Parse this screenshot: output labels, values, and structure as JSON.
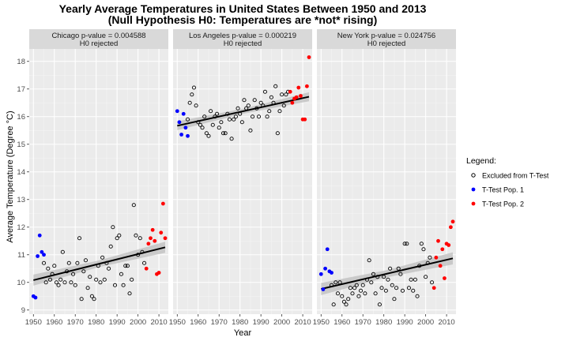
{
  "chart_data": {
    "type": "scatter",
    "title_line1": "Yearly Average Temperatures in United States Between 1950 and 2013",
    "title_line2": "(Null Hypothesis H0: Temperatures are *not* rising)",
    "xlabel": "Year",
    "ylabel": "Average Temperature (Degree °C)",
    "xlim": [
      1948,
      2014.5
    ],
    "ylim": [
      8.85,
      18.45
    ],
    "x_ticks": [
      1950,
      1960,
      1970,
      1980,
      1990,
      2000,
      2010
    ],
    "y_ticks": [
      9,
      10,
      11,
      12,
      13,
      14,
      15,
      16,
      17,
      18
    ],
    "grid": true,
    "legend": {
      "title": "Legend:",
      "position": "right",
      "entries": [
        {
          "label": "Excluded from T-Test",
          "color": "#000000",
          "shape": "open-circle"
        },
        {
          "label": "T-Test Pop. 1",
          "color": "#0000ff",
          "shape": "filled-circle"
        },
        {
          "label": "T-Test Pop. 2",
          "color": "#ff0000",
          "shape": "filled-circle"
        }
      ]
    },
    "colors": {
      "excluded": "#000000",
      "pop1": "#0000ff",
      "pop2": "#ff0000",
      "trend": "#000000",
      "band": "#bdbdbd"
    },
    "panels": [
      {
        "strip_line1": "Chicago p-value = 0.004588",
        "strip_line2": "H0 rejected",
        "trend": {
          "x": [
            1950,
            2013
          ],
          "y": [
            10.08,
            11.27
          ]
        },
        "band_halfwidth": [
          0.2,
          0.12,
          0.2
        ],
        "excluded": {
          "x": [
            1955,
            1956,
            1957,
            1958,
            1959,
            1960,
            1961,
            1962,
            1963,
            1964,
            1965,
            1966,
            1967,
            1968,
            1969,
            1970,
            1971,
            1972,
            1973,
            1974,
            1975,
            1976,
            1977,
            1978,
            1979,
            1980,
            1981,
            1982,
            1983,
            1984,
            1985,
            1986,
            1987,
            1988,
            1989,
            1990,
            1991,
            1992,
            1993,
            1994,
            1995,
            1996,
            1997,
            1998,
            1999,
            2000,
            2001,
            2002,
            2003
          ],
          "y": [
            10.7,
            10.0,
            10.5,
            10.1,
            10.3,
            10.6,
            10.0,
            9.9,
            10.1,
            11.1,
            10.0,
            10.4,
            10.7,
            10.0,
            10.3,
            9.9,
            10.7,
            11.6,
            9.4,
            10.4,
            10.8,
            9.8,
            10.2,
            9.5,
            9.4,
            10.1,
            10.6,
            10.0,
            10.9,
            10.1,
            10.7,
            10.5,
            11.3,
            12.0,
            9.9,
            11.6,
            11.7,
            10.3,
            9.9,
            10.6,
            10.6,
            9.6,
            10.1,
            12.8,
            11.7,
            11.0,
            11.6,
            11.1,
            10.7
          ]
        },
        "pop1": {
          "x": [
            1950,
            1951,
            1952,
            1953,
            1954,
            1955
          ],
          "y": [
            9.5,
            9.45,
            10.95,
            11.7,
            11.1,
            11.0
          ]
        },
        "pop2": {
          "x": [
            2004,
            2005,
            2006,
            2007,
            2008,
            2009,
            2010,
            2011,
            2012,
            2013
          ],
          "y": [
            10.5,
            11.4,
            11.6,
            11.9,
            11.5,
            10.3,
            10.35,
            11.8,
            12.85,
            11.6
          ]
        }
      },
      {
        "strip_line1": "Los Angeles p-value = 0.000219",
        "strip_line2": "H0 rejected",
        "trend": {
          "x": [
            1950,
            2013
          ],
          "y": [
            15.67,
            16.72
          ]
        },
        "band_halfwidth": [
          0.16,
          0.09,
          0.16
        ],
        "excluded": {
          "x": [
            1955,
            1956,
            1957,
            1958,
            1959,
            1960,
            1961,
            1962,
            1963,
            1964,
            1965,
            1966,
            1967,
            1968,
            1969,
            1970,
            1971,
            1972,
            1973,
            1974,
            1975,
            1976,
            1977,
            1978,
            1979,
            1980,
            1981,
            1982,
            1983,
            1984,
            1985,
            1986,
            1987,
            1988,
            1989,
            1990,
            1991,
            1992,
            1993,
            1994,
            1995,
            1996,
            1997,
            1998,
            1999,
            2000,
            2001,
            2002,
            2003
          ],
          "y": [
            15.9,
            16.5,
            16.8,
            17.05,
            16.4,
            15.8,
            15.7,
            15.6,
            16.0,
            15.4,
            15.3,
            16.2,
            15.7,
            16.0,
            16.1,
            15.6,
            15.8,
            15.4,
            15.4,
            16.1,
            15.9,
            15.2,
            15.9,
            16.0,
            16.3,
            16.1,
            15.8,
            16.6,
            16.3,
            16.4,
            15.5,
            16.0,
            16.6,
            16.3,
            16.0,
            16.5,
            16.4,
            16.9,
            16.0,
            16.2,
            16.7,
            16.5,
            17.1,
            15.4,
            16.2,
            16.8,
            16.4,
            16.8,
            16.9
          ]
        },
        "pop1": {
          "x": [
            1950,
            1951,
            1952,
            1953,
            1954,
            1955
          ],
          "y": [
            16.2,
            15.8,
            15.35,
            16.1,
            15.6,
            15.3
          ]
        },
        "pop2": {
          "x": [
            2004,
            2005,
            2006,
            2007,
            2008,
            2009,
            2010,
            2011,
            2012,
            2013
          ],
          "y": [
            16.9,
            16.5,
            16.65,
            16.7,
            17.05,
            16.75,
            15.9,
            15.9,
            17.1,
            18.15
          ]
        }
      },
      {
        "strip_line1": "New York p-value = 0.024756",
        "strip_line2": "H0 rejected",
        "trend": {
          "x": [
            1950,
            2013
          ],
          "y": [
            9.76,
            10.87
          ]
        },
        "band_halfwidth": [
          0.22,
          0.13,
          0.22
        ],
        "excluded": {
          "x": [
            1955,
            1956,
            1957,
            1958,
            1959,
            1960,
            1961,
            1962,
            1963,
            1964,
            1965,
            1966,
            1967,
            1968,
            1969,
            1970,
            1971,
            1972,
            1973,
            1974,
            1975,
            1976,
            1977,
            1978,
            1979,
            1980,
            1981,
            1982,
            1983,
            1984,
            1985,
            1986,
            1987,
            1988,
            1989,
            1990,
            1991,
            1992,
            1993,
            1994,
            1995,
            1996,
            1997,
            1998,
            1999,
            2000,
            2001,
            2002,
            2003
          ],
          "y": [
            9.9,
            9.2,
            10.0,
            9.6,
            10.0,
            9.5,
            9.3,
            9.2,
            9.4,
            9.8,
            9.6,
            9.8,
            9.9,
            9.5,
            9.7,
            9.9,
            9.6,
            10.1,
            10.8,
            10.0,
            10.3,
            9.6,
            10.2,
            9.2,
            9.8,
            10.2,
            9.7,
            10.1,
            10.5,
            9.9,
            9.4,
            9.8,
            10.5,
            10.3,
            9.7,
            11.4,
            11.4,
            9.8,
            10.1,
            9.7,
            10.1,
            9.5,
            10.6,
            11.4,
            11.2,
            10.2,
            10.7,
            10.9,
            10.0
          ]
        },
        "pop1": {
          "x": [
            1950,
            1951,
            1952,
            1953,
            1954,
            1955
          ],
          "y": [
            10.3,
            9.75,
            10.5,
            11.2,
            10.4,
            10.35
          ]
        },
        "pop2": {
          "x": [
            2004,
            2005,
            2006,
            2007,
            2008,
            2009,
            2010,
            2011,
            2012,
            2013
          ],
          "y": [
            9.8,
            10.9,
            11.5,
            10.6,
            11.2,
            10.15,
            11.4,
            11.35,
            12.0,
            12.2
          ]
        }
      }
    ]
  }
}
